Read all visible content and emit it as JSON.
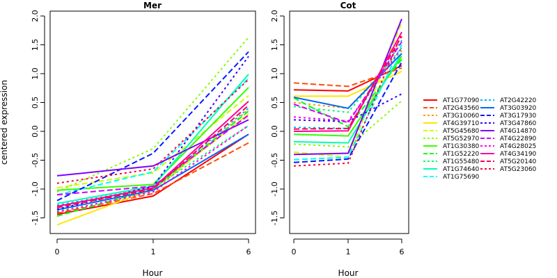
{
  "chart_data": {
    "type": "line",
    "ylabel": "centered expression",
    "xlabel": "Hour",
    "x": [
      "0",
      "1",
      "6"
    ],
    "ylim": [
      -1.75,
      2.05
    ],
    "yticks": [
      "-1.5",
      "-1.0",
      "-0.5",
      "0.0",
      "0.5",
      "1.0",
      "1.5",
      "2.0"
    ],
    "ytick_values": [
      -1.5,
      -1.0,
      -0.5,
      0.0,
      0.5,
      1.0,
      1.5,
      2.0
    ],
    "legend_position": "right",
    "series": [
      {
        "name": "AT1G77090",
        "color": "#FF0000",
        "dash": "solid",
        "Mer": [
          -1.44,
          -1.12,
          -0.05
        ],
        "Cot": [
          0.72,
          0.7,
          1.14
        ]
      },
      {
        "name": "AT2G43560",
        "color": "#FF4D00",
        "dash": "dashed",
        "Mer": [
          -1.42,
          -1.08,
          -0.2
        ],
        "Cot": [
          0.84,
          0.78,
          1.1
        ]
      },
      {
        "name": "AT3G10060",
        "color": "#FF9900",
        "dash": "dotted",
        "Mer": [
          -1.4,
          -1.05,
          0.38
        ],
        "Cot": [
          0.5,
          0.4,
          1.4
        ]
      },
      {
        "name": "AT4G39710",
        "color": "#FFE500",
        "dash": "solid",
        "Mer": [
          -1.62,
          -1.0,
          0.3
        ],
        "Cot": [
          0.61,
          0.61,
          1.04
        ]
      },
      {
        "name": "AT5G45680",
        "color": "#CCFF00",
        "dash": "dashed",
        "Mer": [
          -0.98,
          -0.72,
          0.62
        ],
        "Cot": [
          -0.36,
          -0.45,
          1.89
        ]
      },
      {
        "name": "AT5G52970",
        "color": "#80FF00",
        "dash": "dotted",
        "Mer": [
          -1.05,
          -0.3,
          1.63
        ],
        "Cot": [
          -0.22,
          -0.27,
          0.53
        ]
      },
      {
        "name": "AT1G30380",
        "color": "#33FF00",
        "dash": "solid",
        "Mer": [
          -1.02,
          -0.92,
          0.76
        ],
        "Cot": [
          -0.05,
          -0.08,
          1.3
        ]
      },
      {
        "name": "AT1G52220",
        "color": "#00FF19",
        "dash": "dashed",
        "Mer": [
          -1.47,
          -1.0,
          0.35
        ],
        "Cot": [
          0.58,
          0.08,
          1.25
        ]
      },
      {
        "name": "AT1G55480",
        "color": "#00FF66",
        "dash": "dotted",
        "Mer": [
          -1.38,
          -0.98,
          0.1
        ],
        "Cot": [
          0.43,
          0.33,
          1.45
        ]
      },
      {
        "name": "AT1G74640",
        "color": "#00FFB2",
        "dash": "solid",
        "Mer": [
          -1.25,
          -0.95,
          0.99
        ],
        "Cot": [
          -0.18,
          -0.2,
          1.35
        ]
      },
      {
        "name": "AT1G75690",
        "color": "#00FFFF",
        "dash": "dashed",
        "Mer": [
          -1.1,
          -0.7,
          0.92
        ],
        "Cot": [
          -0.49,
          -0.45,
          1.5
        ]
      },
      {
        "name": "AT2G42220",
        "color": "#00B3FF",
        "dash": "dotted",
        "Mer": [
          -1.28,
          -0.98,
          0.4
        ],
        "Cot": [
          0.07,
          0.05,
          1.58
        ]
      },
      {
        "name": "AT3G03920",
        "color": "#0066FF",
        "dash": "solid",
        "Mer": [
          -1.36,
          -1.02,
          -0.05
        ],
        "Cot": [
          0.59,
          0.4,
          1.35
        ]
      },
      {
        "name": "AT3G17930",
        "color": "#0019FF",
        "dash": "dashed",
        "Mer": [
          -1.2,
          -0.38,
          1.38
        ],
        "Cot": [
          -0.54,
          -0.48,
          1.2
        ]
      },
      {
        "name": "AT3G47860",
        "color": "#3300FF",
        "dash": "dotted",
        "Mer": [
          -1.35,
          -0.95,
          1.3
        ],
        "Cot": [
          0.2,
          0.17,
          0.65
        ]
      },
      {
        "name": "AT4G14870",
        "color": "#7F00FF",
        "dash": "solid",
        "Mer": [
          -0.77,
          -0.6,
          0.2
        ],
        "Cot": [
          -0.4,
          -0.38,
          1.95
        ]
      },
      {
        "name": "AT4G22890",
        "color": "#CC00FF",
        "dash": "dashed",
        "Mer": [
          -1.1,
          -0.95,
          0.28
        ],
        "Cot": [
          0.47,
          0.15,
          1.55
        ]
      },
      {
        "name": "AT4G28025",
        "color": "#FF00E6",
        "dash": "dotted",
        "Mer": [
          -1.4,
          -1.05,
          0.1
        ],
        "Cot": [
          0.25,
          0.18,
          1.45
        ]
      },
      {
        "name": "AT4G34190",
        "color": "#FF0099",
        "dash": "solid",
        "Mer": [
          -1.3,
          -0.98,
          0.52
        ],
        "Cot": [
          0.0,
          0.01,
          1.72
        ]
      },
      {
        "name": "AT5G20140",
        "color": "#FF004D",
        "dash": "dashed",
        "Mer": [
          -1.32,
          -1.0,
          0.45
        ],
        "Cot": [
          0.04,
          0.05,
          1.65
        ]
      },
      {
        "name": "AT5G23060",
        "color": "#FF0033",
        "dash": "dotted",
        "Mer": [
          -0.9,
          -0.65,
          0.9
        ],
        "Cot": [
          -0.6,
          -0.55,
          1.7
        ]
      }
    ],
    "panels": [
      {
        "key": "Mer",
        "title": "Mer"
      },
      {
        "key": "Cot",
        "title": "Cot"
      }
    ]
  }
}
